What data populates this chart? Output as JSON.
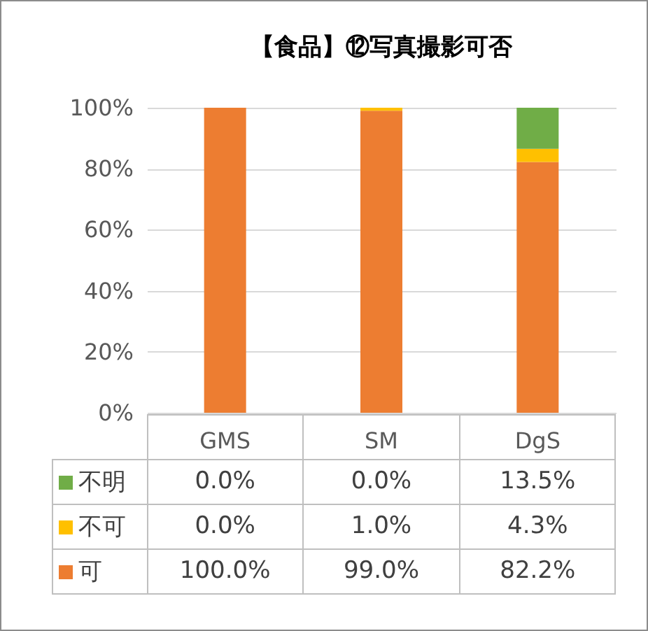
{
  "chart_data": {
    "type": "bar",
    "title": "【食品】⑫写真撮影可否",
    "categories": [
      "GMS",
      "SM",
      "DgS"
    ],
    "stacked": true,
    "ylim": [
      0,
      100
    ],
    "yticks": [
      {
        "value": 0,
        "label": "0%"
      },
      {
        "value": 20,
        "label": "20%"
      },
      {
        "value": 40,
        "label": "40%"
      },
      {
        "value": 60,
        "label": "60%"
      },
      {
        "value": 80,
        "label": "80%"
      },
      {
        "value": 100,
        "label": "100%"
      }
    ],
    "grid": "y",
    "legend": "bottom left",
    "series": [
      {
        "name": "可",
        "color": "#ed7d31",
        "values": [
          100.0,
          99.0,
          82.2
        ],
        "value_labels": [
          "100.0%",
          "99.0%",
          "82.2%"
        ]
      },
      {
        "name": "不可",
        "color": "#ffc000",
        "values": [
          0.0,
          1.0,
          4.3
        ],
        "value_labels": [
          "0.0%",
          "1.0%",
          "4.3%"
        ]
      },
      {
        "name": "不明",
        "color": "#70ad47",
        "values": [
          0.0,
          0.0,
          13.5
        ],
        "value_labels": [
          "0.0%",
          "0.0%",
          "13.5%"
        ]
      }
    ]
  }
}
